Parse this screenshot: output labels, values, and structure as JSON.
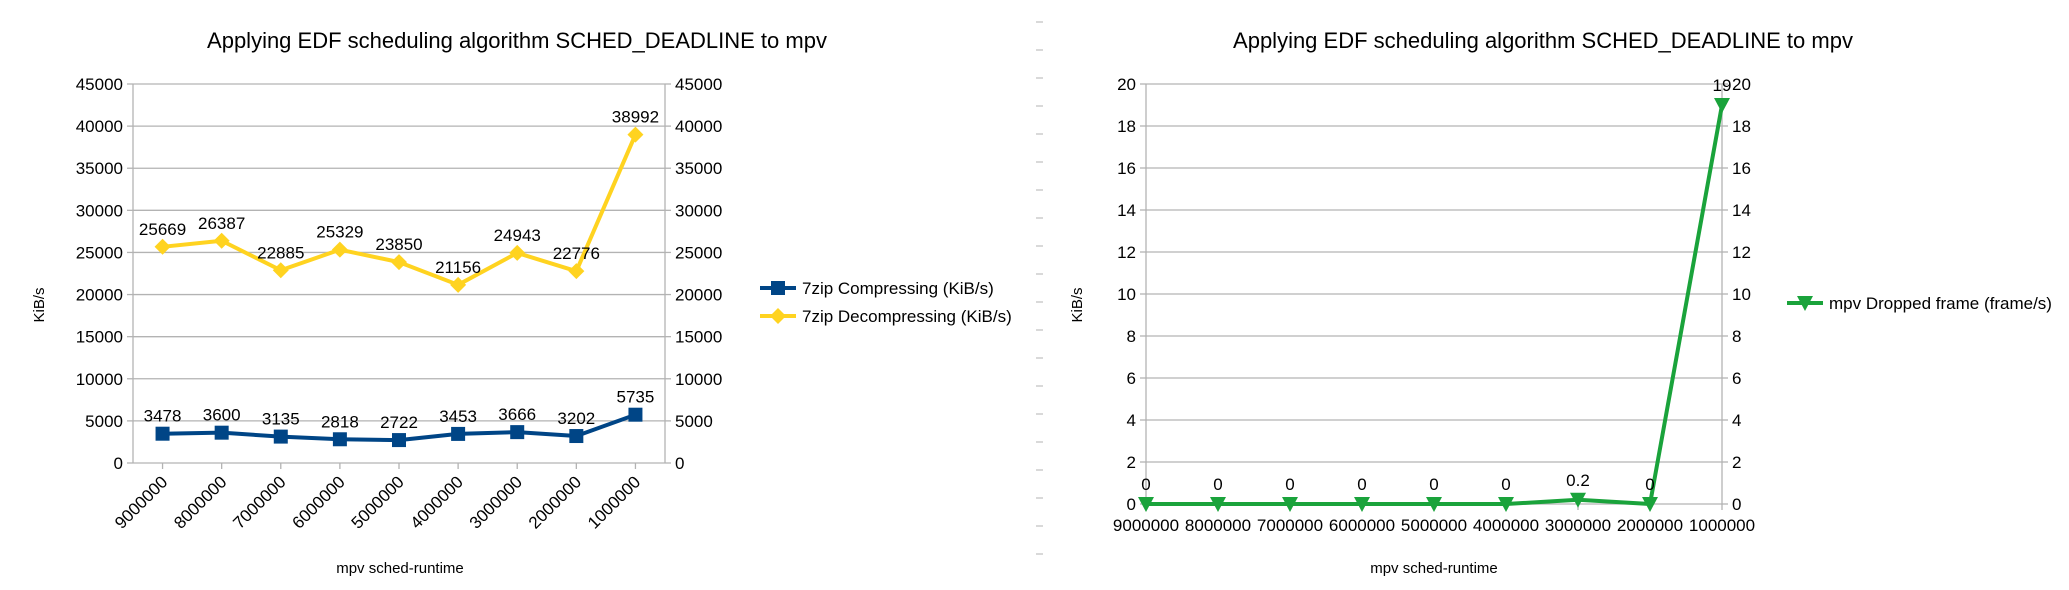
{
  "chart_data": [
    {
      "type": "line",
      "title": "Applying EDF scheduling algorithm SCHED_DEADLINE to mpv",
      "xlabel": "mpv sched-runtime",
      "ylabel": "KiB/s",
      "categories": [
        "9000000",
        "8000000",
        "7000000",
        "6000000",
        "5000000",
        "4000000",
        "3000000",
        "2000000",
        "1000000"
      ],
      "ylim": [
        0,
        45000
      ],
      "yticks": [
        "0",
        "5000",
        "10000",
        "15000",
        "20000",
        "25000",
        "30000",
        "35000",
        "40000",
        "45000"
      ],
      "secondary_axis": true,
      "grid": true,
      "legend_position": "right",
      "series": [
        {
          "name": "7zip Compressing (KiB/s)",
          "color": "#004586",
          "marker": "square",
          "values": [
            3478,
            3600,
            3135,
            2818,
            2722,
            3453,
            3666,
            3202,
            5735
          ],
          "labels": [
            "3478",
            "3600",
            "3135",
            "2818",
            "2722",
            "3453",
            "3666",
            "3202",
            "5735"
          ]
        },
        {
          "name": "7zip Decompressing (KiB/s)",
          "color": "#ffd320",
          "marker": "diamond",
          "values": [
            25669,
            26387,
            22885,
            25329,
            23850,
            21156,
            24943,
            22776,
            38992
          ],
          "labels": [
            "25669",
            "26387",
            "22885",
            "25329",
            "23850",
            "21156",
            "24943",
            "22776",
            "38992"
          ]
        }
      ]
    },
    {
      "type": "line",
      "title": "Applying EDF scheduling algorithm SCHED_DEADLINE to mpv",
      "xlabel": "mpv sched-runtime",
      "ylabel": "KiB/s",
      "categories": [
        "9000000",
        "8000000",
        "7000000",
        "6000000",
        "5000000",
        "4000000",
        "3000000",
        "2000000",
        "1000000"
      ],
      "ylim": [
        0,
        20
      ],
      "yticks": [
        "0",
        "2",
        "4",
        "6",
        "8",
        "10",
        "12",
        "14",
        "16",
        "18",
        "20"
      ],
      "secondary_axis": true,
      "grid": true,
      "legend_position": "right",
      "series": [
        {
          "name": "mpv Dropped frame (frame/s)",
          "color": "#1aa33b",
          "marker": "triangle-down",
          "values": [
            0,
            0,
            0,
            0,
            0,
            0,
            0.2,
            0,
            19
          ],
          "labels": [
            "0",
            "0",
            "0",
            "0",
            "0",
            "0",
            "0.2",
            "0",
            "19"
          ]
        }
      ]
    }
  ]
}
